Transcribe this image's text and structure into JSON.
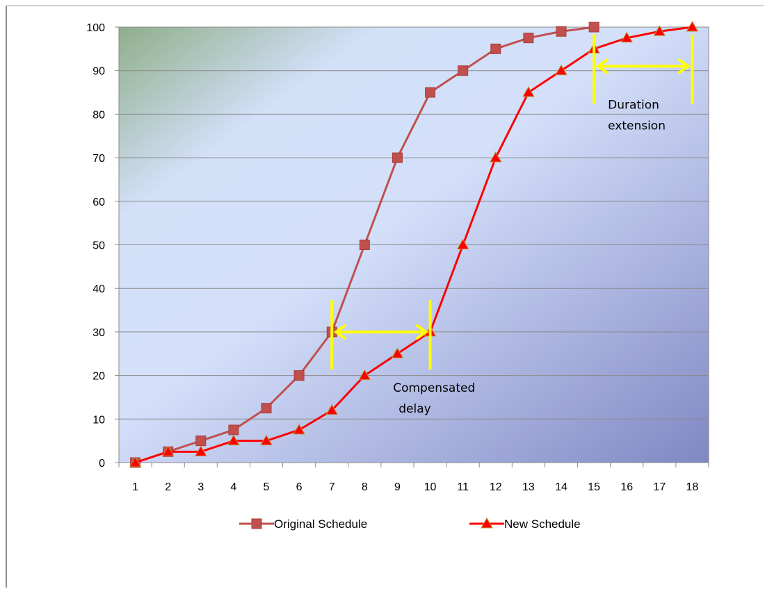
{
  "chart_data": {
    "type": "line",
    "title": "",
    "xlabel": "",
    "ylabel": "",
    "x": [
      1,
      2,
      3,
      4,
      5,
      6,
      7,
      8,
      9,
      10,
      11,
      12,
      13,
      14,
      15,
      16,
      17,
      18
    ],
    "ylim": [
      0,
      100
    ],
    "yticks": [
      0,
      10,
      20,
      30,
      40,
      50,
      60,
      70,
      80,
      90,
      100
    ],
    "grid": true,
    "legend_position": "bottom",
    "series": [
      {
        "name": "Original Schedule",
        "marker": "square",
        "color": "#c0504d",
        "x": [
          1,
          2,
          3,
          4,
          5,
          6,
          7,
          8,
          9,
          10,
          11,
          12,
          13,
          14,
          15
        ],
        "values": [
          0,
          2.5,
          5,
          7.5,
          12.5,
          20,
          30,
          50,
          70,
          85,
          90,
          95,
          97.5,
          99,
          100
        ]
      },
      {
        "name": "New Schedule",
        "marker": "triangle",
        "color": "#ff0000",
        "x": [
          1,
          2,
          3,
          4,
          5,
          6,
          7,
          8,
          9,
          10,
          11,
          12,
          13,
          14,
          15,
          16,
          17,
          18
        ],
        "values": [
          0,
          2.5,
          2.5,
          5,
          5,
          7.5,
          12,
          20,
          25,
          30,
          50,
          70,
          85,
          90,
          95,
          97.5,
          99,
          100
        ]
      }
    ],
    "annotations": [
      {
        "text": [
          "Compensated",
          "delay"
        ],
        "arrow_from": [
          7,
          30
        ],
        "arrow_to": [
          10,
          30
        ],
        "color": "#ffff00"
      },
      {
        "text": [
          "Duration",
          "extension"
        ],
        "arrow_from": [
          15,
          91
        ],
        "arrow_to": [
          18,
          91
        ],
        "color": "#ffff00"
      }
    ]
  }
}
